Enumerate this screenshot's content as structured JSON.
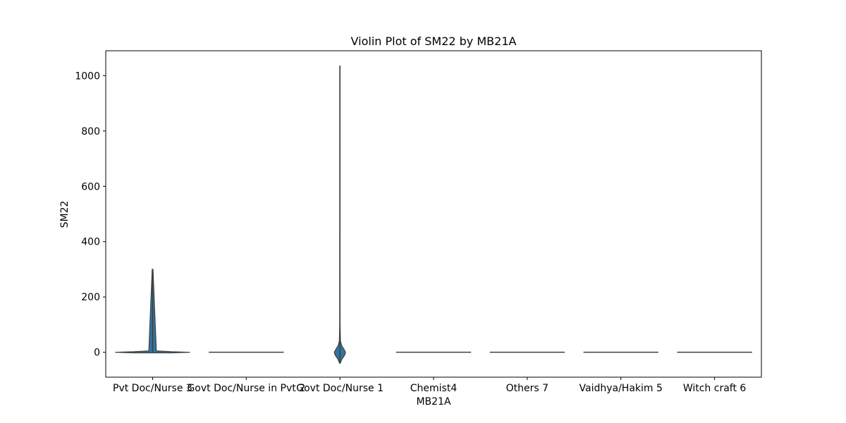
{
  "chart_data": {
    "type": "violin",
    "title": "Violin Plot of SM22 by MB21A",
    "xlabel": "MB21A",
    "ylabel": "SM22",
    "ylim": [
      -90,
      1090
    ],
    "yticks": [
      0,
      200,
      400,
      600,
      800,
      1000
    ],
    "grid": false,
    "legend": "none",
    "categories": [
      "Pvt Doc/Nurse 3",
      "Govt Doc/Nurse in Pvt 2",
      "Govt Doc/Nurse 1",
      "Chemist4",
      "Others 7",
      "Vaidhya/Hakim 5",
      "Witch craft 6"
    ],
    "violins": [
      {
        "category": "Pvt Doc/Nurse 3",
        "min": 0,
        "max": 300,
        "width": 0.8,
        "profile": [
          [
            -2,
            0.5
          ],
          [
            0,
            1.0
          ],
          [
            2,
            0.5
          ],
          [
            5,
            0.1
          ],
          [
            300,
            0.01
          ]
        ]
      },
      {
        "category": "Govt Doc/Nurse in Pvt 2",
        "min": 0,
        "max": 0,
        "width": 0.8,
        "profile": []
      },
      {
        "category": "Govt Doc/Nurse 1",
        "min": -40,
        "max": 1035,
        "width": 0.12,
        "profile": [
          [
            -40,
            0.04
          ],
          [
            -25,
            0.35
          ],
          [
            -10,
            0.85
          ],
          [
            0,
            1.0
          ],
          [
            10,
            0.75
          ],
          [
            25,
            0.3
          ],
          [
            40,
            0.1
          ],
          [
            100,
            0.03
          ],
          [
            1035,
            0.02
          ]
        ]
      },
      {
        "category": "Chemist4",
        "min": 0,
        "max": 0,
        "width": 0.8,
        "profile": []
      },
      {
        "category": "Others 7",
        "min": 0,
        "max": 0,
        "width": 0.8,
        "profile": []
      },
      {
        "category": "Vaidhya/Hakim 5",
        "min": 0,
        "max": 0,
        "width": 0.8,
        "profile": []
      },
      {
        "category": "Witch craft 6",
        "min": 0,
        "max": 0,
        "width": 0.8,
        "profile": []
      }
    ],
    "colors": {
      "fill": "#3274a1",
      "line": "#3f3f3f",
      "axis": "#000000"
    }
  }
}
